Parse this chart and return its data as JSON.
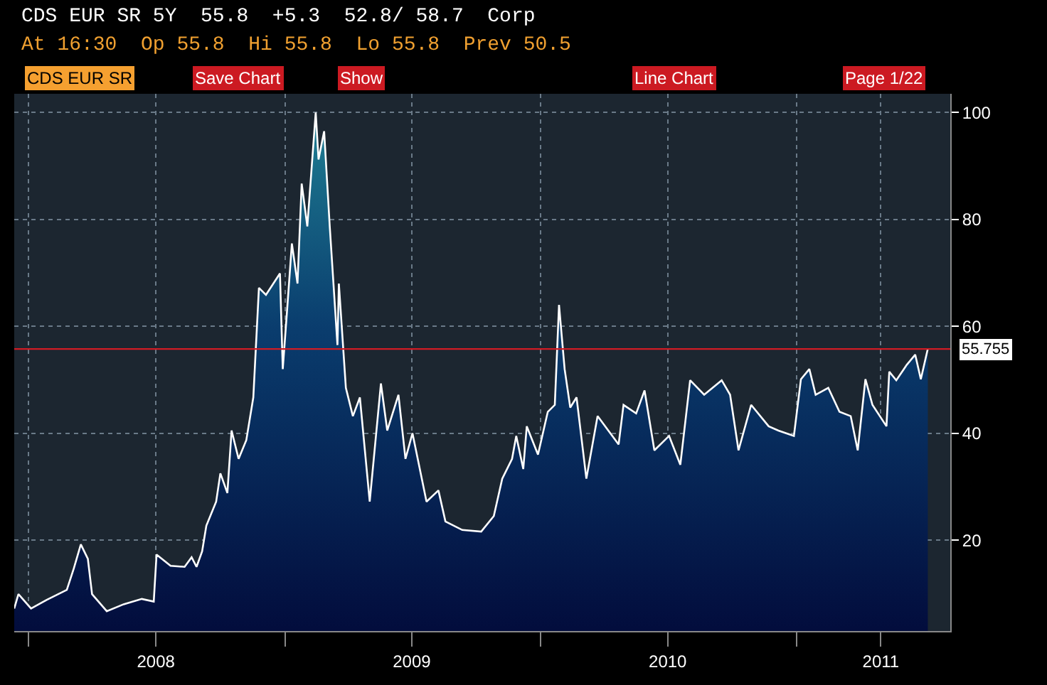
{
  "chart_data": {
    "type": "area",
    "title": "CDS EUR SR 5Y  55.8  +5.3  52.8/ 58.7  Corp",
    "subtitle": "At 16:30  Op 55.8  Hi 55.8  Lo 55.8  Prev 50.5",
    "annotations": [
      "CDS EUR SR",
      "Save Chart",
      "Show",
      "Line Chart",
      "Page 1/22"
    ],
    "x": [
      "2007-12-12",
      "2007-12-18",
      "2008-01-05",
      "2008-01-27",
      "2008-02-25",
      "2008-03-06",
      "2008-03-16",
      "2008-03-26",
      "2008-04-01",
      "2008-04-22",
      "2008-05-16",
      "2008-06-11",
      "2008-06-28",
      "2008-07-02",
      "2008-07-22",
      "2008-08-11",
      "2008-08-21",
      "2008-08-28",
      "2008-09-05",
      "2008-09-11",
      "2008-09-25",
      "2008-10-01",
      "2008-10-11",
      "2008-10-17",
      "2008-10-27",
      "2008-11-07",
      "2008-11-17",
      "2008-11-25",
      "2008-12-05",
      "2008-12-25",
      "2008-12-29",
      "2009-01-04",
      "2009-01-11",
      "2009-01-19",
      "2009-01-25",
      "2009-02-02",
      "2009-02-14",
      "2009-02-18",
      "2009-02-26",
      "2009-03-06",
      "2009-03-17",
      "2009-03-19",
      "2009-03-29",
      "2009-04-08",
      "2009-04-18",
      "2009-05-02",
      "2009-05-18",
      "2009-05-27",
      "2009-06-12",
      "2009-06-22",
      "2009-07-02",
      "2009-07-22",
      "2009-08-08",
      "2009-08-18",
      "2009-09-11",
      "2009-10-08",
      "2009-10-26",
      "2009-11-07",
      "2009-11-21",
      "2009-11-27",
      "2009-12-07",
      "2009-12-12",
      "2009-12-28",
      "2010-01-11",
      "2010-01-21",
      "2010-01-27",
      "2010-02-04",
      "2010-02-12",
      "2010-02-21",
      "2010-03-07",
      "2010-03-23",
      "2010-04-22",
      "2010-04-29",
      "2010-05-17",
      "2010-05-29",
      "2010-06-12",
      "2010-07-03",
      "2010-07-19",
      "2010-08-02",
      "2010-08-22",
      "2010-09-16",
      "2010-09-28",
      "2010-10-10",
      "2010-10-28",
      "2010-11-22",
      "2010-12-06",
      "2010-12-28",
      "2011-01-07",
      "2011-01-19",
      "2011-01-28",
      "2011-02-15",
      "2011-03-03",
      "2011-03-19",
      "2011-03-29",
      "2011-04-09",
      "2011-04-19",
      "2011-05-09",
      "2011-05-13",
      "2011-05-23",
      "2011-06-07",
      "2011-06-19",
      "2011-06-27",
      "2011-07-07"
    ],
    "series": [
      {
        "color": "#ffffff",
        "values": [
          7.2,
          9.9,
          7.2,
          8.8,
          10.7,
          14.7,
          19.2,
          16.5,
          9.9,
          6.7,
          8,
          9,
          8.5,
          17.3,
          15.2,
          15,
          16.8,
          15,
          17.9,
          22.7,
          27.2,
          32.5,
          28.8,
          40.5,
          35.2,
          38.7,
          46.7,
          67.2,
          65.9,
          69.9,
          52,
          62.7,
          75.5,
          68,
          86.7,
          78.7,
          100,
          91.2,
          96.5,
          78.7,
          56.5,
          68,
          48.5,
          43.2,
          46.7,
          27.2,
          49.3,
          40.5,
          47.2,
          35.2,
          40,
          27.2,
          29.3,
          23.5,
          21.9,
          21.6,
          24.5,
          31.5,
          35.2,
          39.5,
          33.3,
          41.3,
          36,
          44,
          45.3,
          64,
          52,
          44.8,
          46.7,
          31.5,
          43.2,
          37.9,
          45.3,
          43.7,
          48,
          36.8,
          39.5,
          34.1,
          49.9,
          47.2,
          49.9,
          47.2,
          36.8,
          45.3,
          41.3,
          40.5,
          39.5,
          50.1,
          52,
          47.2,
          48.5,
          44,
          43.2,
          36.8,
          50.1,
          45.3,
          41.3,
          51.5,
          49.9,
          52.8,
          54.7,
          50.1,
          55.8
        ]
      }
    ],
    "xlim": [
      "2007-12-12",
      "2011-08-08"
    ],
    "xticks": [
      {
        "value": "2008-01-01",
        "label": null
      },
      {
        "value": "2008-07-01",
        "label": "2008"
      },
      {
        "value": "2009-01-01",
        "label": null
      },
      {
        "value": "2009-07-01",
        "label": "2009"
      },
      {
        "value": "2010-01-01",
        "label": null
      },
      {
        "value": "2010-07-01",
        "label": "2010"
      },
      {
        "value": "2011-01-01",
        "label": null
      },
      {
        "value": "2011-05-01",
        "label": "2011"
      }
    ],
    "ylim": [
      3,
      103.5
    ],
    "yticks": [
      20,
      40,
      60,
      80,
      100
    ],
    "ref_lines": [
      {
        "axis": "y",
        "value": 55.755,
        "label": "55.755",
        "color": "#d01c24"
      }
    ],
    "grid": true,
    "legend": false
  }
}
